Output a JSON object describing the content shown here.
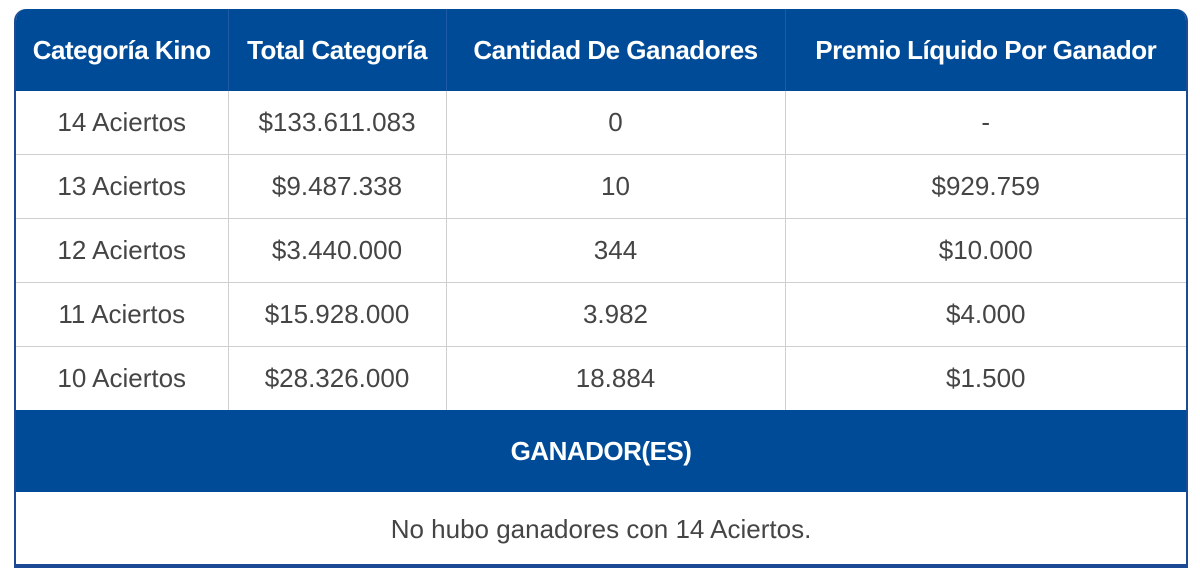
{
  "table": {
    "headers": [
      "Categoría Kino",
      "Total Categoría",
      "Cantidad De Ganadores",
      "Premio Líquido Por Ganador"
    ],
    "rows": [
      [
        "14 Aciertos",
        "$133.611.083",
        "0",
        "-"
      ],
      [
        "13 Aciertos",
        "$9.487.338",
        "10",
        "$929.759"
      ],
      [
        "12 Aciertos",
        "$3.440.000",
        "344",
        "$10.000"
      ],
      [
        "11 Aciertos",
        "$15.928.000",
        "3.982",
        "$4.000"
      ],
      [
        "10 Aciertos",
        "$28.326.000",
        "18.884",
        "$1.500"
      ]
    ]
  },
  "winners": {
    "title": "GANADOR(ES)",
    "message": "No hubo ganadores con 14 Aciertos."
  },
  "colors": {
    "header_bg": "#004b98",
    "header_text": "#ffffff",
    "cell_text": "#454545",
    "grid_line": "#cfcfcf",
    "outer_border": "#1c4a94"
  }
}
